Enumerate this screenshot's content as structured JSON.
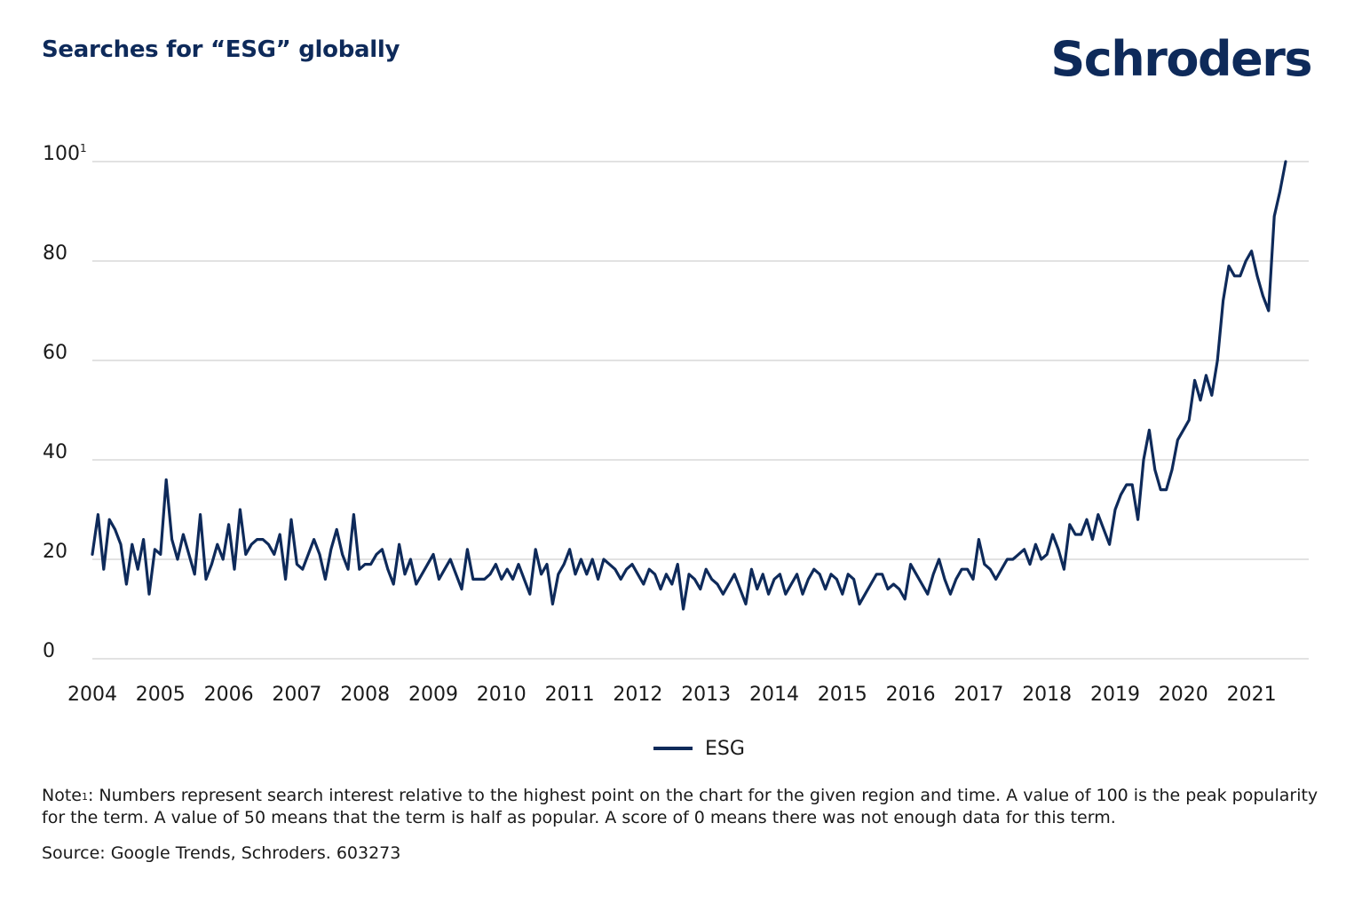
{
  "header": {
    "title": "Searches for “ESG” globally",
    "brand": "Schroders"
  },
  "colors": {
    "brand": "#0e2a5a",
    "line": "#0e2a5a",
    "grid": "#c4c4c4"
  },
  "footer": {
    "note_prefix": "Note",
    "note_superscript": "1",
    "note_text": ": Numbers represent search interest relative to the highest point on the chart for the given region and time. A value of 100 is the peak popularity for the term. A value of 50 means that the term is half as popular. A score of 0 means there was not enough data for this term.",
    "source": "Source: Google Trends, Schroders. 603273"
  },
  "chart_data": {
    "type": "line",
    "title": "Searches for “ESG” globally",
    "xlabel": "",
    "ylabel": "",
    "ylim": [
      0,
      100
    ],
    "xlim": [
      "2004-01",
      "2021-11"
    ],
    "grid": true,
    "legend_position": "bottom-center",
    "y_ticks": [
      {
        "value": 0,
        "label": "0"
      },
      {
        "value": 20,
        "label": "20"
      },
      {
        "value": 40,
        "label": "40"
      },
      {
        "value": 60,
        "label": "60"
      },
      {
        "value": 80,
        "label": "80"
      },
      {
        "value": 100,
        "label": "100",
        "superscript": "1"
      }
    ],
    "x_ticks": [
      "2004",
      "2005",
      "2006",
      "2007",
      "2008",
      "2009",
      "2010",
      "2011",
      "2012",
      "2013",
      "2014",
      "2015",
      "2016",
      "2017",
      "2018",
      "2019",
      "2020",
      "2021"
    ],
    "series": [
      {
        "name": "ESG",
        "start": "2004-01",
        "interval": "month",
        "values": [
          21,
          29,
          18,
          28,
          26,
          23,
          15,
          23,
          18,
          24,
          13,
          22,
          21,
          36,
          24,
          20,
          25,
          21,
          17,
          29,
          16,
          19,
          23,
          20,
          27,
          18,
          30,
          21,
          23,
          24,
          24,
          23,
          21,
          25,
          16,
          28,
          19,
          18,
          21,
          24,
          21,
          16,
          22,
          26,
          21,
          18,
          29,
          18,
          19,
          19,
          21,
          22,
          18,
          15,
          23,
          17,
          20,
          15,
          17,
          19,
          21,
          16,
          18,
          20,
          17,
          14,
          22,
          16,
          16,
          16,
          17,
          19,
          16,
          18,
          16,
          19,
          16,
          13,
          22,
          17,
          19,
          11,
          17,
          19,
          22,
          17,
          20,
          17,
          20,
          16,
          20,
          19,
          18,
          16,
          18,
          19,
          17,
          15,
          18,
          17,
          14,
          17,
          15,
          19,
          10,
          17,
          16,
          14,
          18,
          16,
          15,
          13,
          15,
          17,
          14,
          11,
          18,
          14,
          17,
          13,
          16,
          17,
          13,
          15,
          17,
          13,
          16,
          18,
          17,
          14,
          17,
          16,
          13,
          17,
          16,
          11,
          13,
          15,
          17,
          17,
          14,
          15,
          14,
          12,
          19,
          17,
          15,
          13,
          17,
          20,
          16,
          13,
          16,
          18,
          18,
          16,
          24,
          19,
          18,
          16,
          18,
          20,
          20,
          21,
          22,
          19,
          23,
          20,
          21,
          25,
          22,
          18,
          27,
          25,
          25,
          28,
          24,
          29,
          26,
          23,
          30,
          33,
          35,
          35,
          28,
          40,
          46,
          38,
          34,
          34,
          38,
          44,
          46,
          48,
          56,
          52,
          57,
          53,
          60,
          72,
          79,
          77,
          77,
          80,
          82,
          77,
          73,
          70,
          89,
          94,
          100
        ]
      }
    ]
  }
}
